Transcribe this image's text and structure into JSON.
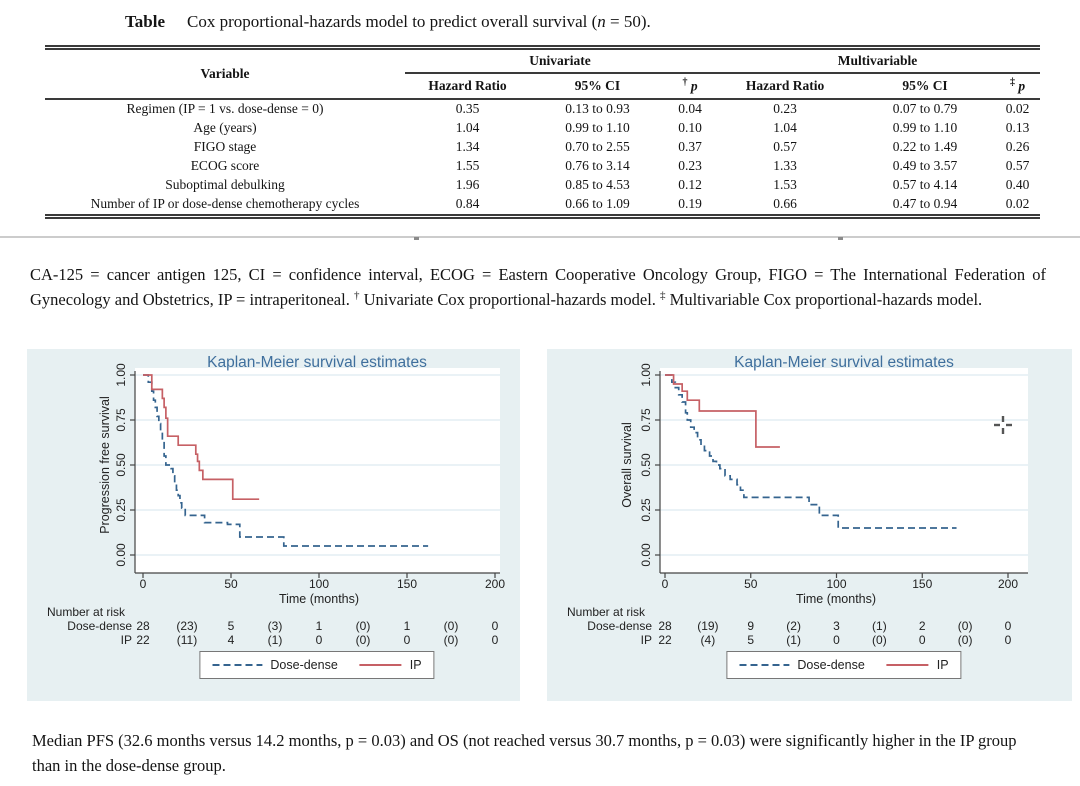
{
  "table": {
    "caption": {
      "label": "Table",
      "text1": "Cox proportional-hazards model to predict overall survival (",
      "n_italic": "n",
      "text2": " = 50)."
    },
    "col_variable": "Variable",
    "group1": "Univariate",
    "group2": "Multivariable",
    "sub_hr1": "Hazard Ratio",
    "sub_ci1": "95% CI",
    "sub_p1_sup": "†",
    "sub_p1": "p",
    "sub_hr2": "Hazard Ratio",
    "sub_ci2": "95% CI",
    "sub_p2_sup": "‡",
    "sub_p2": "p",
    "rows": [
      [
        "Regimen (IP = 1 vs. dose-dense = 0)",
        "0.35",
        "0.13 to 0.93",
        "0.04",
        "0.23",
        "0.07 to 0.79",
        "0.02"
      ],
      [
        "Age (years)",
        "1.04",
        "0.99 to 1.10",
        "0.10",
        "1.04",
        "0.99 to 1.10",
        "0.13"
      ],
      [
        "FIGO stage",
        "1.34",
        "0.70 to 2.55",
        "0.37",
        "0.57",
        "0.22 to 1.49",
        "0.26"
      ],
      [
        "ECOG score",
        "1.55",
        "0.76 to 3.14",
        "0.23",
        "1.33",
        "0.49 to 3.57",
        "0.57"
      ],
      [
        "Suboptimal debulking",
        "1.96",
        "0.85 to 4.53",
        "0.12",
        "1.53",
        "0.57 to 4.14",
        "0.40"
      ],
      [
        "Number of IP or dose-dense chemotherapy cycles",
        "0.84",
        "0.66 to 1.09",
        "0.19",
        "0.66",
        "0.47 to 0.94",
        "0.02"
      ]
    ]
  },
  "footnote": {
    "p1": "CA-125 = cancer antigen 125, CI = confidence interval, ECOG = Eastern Cooperative Oncology Group, FIGO = The International Federation of Gynecology and Obstetrics, IP = intraperitoneal. ",
    "dagger": "†",
    "p2": " Univariate Cox proportional-hazards model. ",
    "ddagger": "‡",
    "p3": " Multivariable Cox proportional-hazards model."
  },
  "colors": {
    "panel_bg": "#e7f0f2",
    "grid": "#ddebf1",
    "axis": "#444444",
    "plot_title": "#3f6f9d",
    "dose_dense": "#35648f",
    "ip": "#c66065",
    "divider": "#cccccc"
  },
  "cursor": {
    "icon": "crosshair-cursor"
  },
  "chart_data": [
    {
      "type": "line",
      "subtype": "kaplan-meier-step",
      "title": "Kaplan-Meier survival estimates",
      "xlabel": "Time (months)",
      "ylabel": "Progression free survival",
      "xlim": [
        0,
        200
      ],
      "ylim": [
        0,
        1
      ],
      "xticks": [
        0,
        50,
        100,
        150,
        200
      ],
      "yticks": [
        "0.00",
        "0.25",
        "0.50",
        "0.75",
        "1.00"
      ],
      "grid": "horizontal",
      "legend_position": "bottom",
      "series": [
        {
          "name": "Dose-dense",
          "style": "dashed",
          "color": "#35648f",
          "steps": [
            [
              0,
              1.0
            ],
            [
              3,
              0.96
            ],
            [
              5,
              0.91
            ],
            [
              6,
              0.86
            ],
            [
              7,
              0.82
            ],
            [
              8,
              0.77
            ],
            [
              9,
              0.73
            ],
            [
              10,
              0.68
            ],
            [
              11,
              0.64
            ],
            [
              12,
              0.55
            ],
            [
              13,
              0.5
            ],
            [
              16,
              0.48
            ],
            [
              17,
              0.44
            ],
            [
              18,
              0.4
            ],
            [
              19,
              0.36
            ],
            [
              20,
              0.33
            ],
            [
              21,
              0.29
            ],
            [
              22,
              0.26
            ],
            [
              24,
              0.22
            ],
            [
              35,
              0.18
            ],
            [
              48,
              0.17
            ],
            [
              55,
              0.1
            ],
            [
              80,
              0.05
            ],
            [
              162,
              0.05
            ]
          ]
        },
        {
          "name": "IP",
          "style": "solid",
          "color": "#c66065",
          "steps": [
            [
              0,
              1.0
            ],
            [
              5,
              0.92
            ],
            [
              11,
              0.87
            ],
            [
              12,
              0.82
            ],
            [
              13,
              0.76
            ],
            [
              14,
              0.66
            ],
            [
              20,
              0.61
            ],
            [
              30,
              0.56
            ],
            [
              31,
              0.52
            ],
            [
              32,
              0.47
            ],
            [
              34,
              0.42
            ],
            [
              51,
              0.31
            ],
            [
              66,
              0.31
            ]
          ]
        }
      ],
      "number_at_risk": {
        "label": "Number at risk",
        "times": [
          0,
          25,
          50,
          75,
          100,
          125,
          150,
          175,
          200
        ],
        "rows": [
          {
            "name": "Dose-dense",
            "values": [
              "28",
              "(23)",
              "5",
              "(3)",
              "1",
              "(0)",
              "1",
              "(0)",
              "0"
            ]
          },
          {
            "name": "IP",
            "values": [
              "22",
              "(11)",
              "4",
              "(1)",
              "0",
              "(0)",
              "0",
              "(0)",
              "0"
            ]
          }
        ]
      }
    },
    {
      "type": "line",
      "subtype": "kaplan-meier-step",
      "title": "Kaplan-Meier survival estimates",
      "xlabel": "Time (months)",
      "ylabel": "Overall survival",
      "xlim": [
        0,
        200
      ],
      "ylim": [
        0,
        1
      ],
      "xticks": [
        0,
        50,
        100,
        150,
        200
      ],
      "yticks": [
        "0.00",
        "0.25",
        "0.50",
        "0.75",
        "1.00"
      ],
      "grid": "horizontal",
      "legend_position": "bottom",
      "series": [
        {
          "name": "Dose-dense",
          "style": "dashed",
          "color": "#35648f",
          "steps": [
            [
              0,
              1.0
            ],
            [
              4,
              0.96
            ],
            [
              6,
              0.93
            ],
            [
              8,
              0.89
            ],
            [
              10,
              0.85
            ],
            [
              12,
              0.79
            ],
            [
              13,
              0.75
            ],
            [
              15,
              0.71
            ],
            [
              17,
              0.68
            ],
            [
              19,
              0.64
            ],
            [
              21,
              0.61
            ],
            [
              23,
              0.58
            ],
            [
              26,
              0.55
            ],
            [
              28,
              0.52
            ],
            [
              30,
              0.5
            ],
            [
              32,
              0.48
            ],
            [
              35,
              0.44
            ],
            [
              38,
              0.42
            ],
            [
              42,
              0.39
            ],
            [
              44,
              0.36
            ],
            [
              46,
              0.32
            ],
            [
              84,
              0.28
            ],
            [
              90,
              0.22
            ],
            [
              101,
              0.15
            ],
            [
              170,
              0.15
            ]
          ]
        },
        {
          "name": "IP",
          "style": "solid",
          "color": "#c66065",
          "steps": [
            [
              0,
              1.0
            ],
            [
              5,
              0.95
            ],
            [
              10,
              0.91
            ],
            [
              13,
              0.86
            ],
            [
              20,
              0.8
            ],
            [
              53,
              0.6
            ],
            [
              67,
              0.6
            ]
          ]
        }
      ],
      "number_at_risk": {
        "label": "Number at risk",
        "times": [
          0,
          25,
          50,
          75,
          100,
          125,
          150,
          175,
          200
        ],
        "rows": [
          {
            "name": "Dose-dense",
            "values": [
              "28",
              "(19)",
              "9",
              "(2)",
              "3",
              "(1)",
              "2",
              "(0)",
              "0"
            ]
          },
          {
            "name": "IP",
            "values": [
              "22",
              "(4)",
              "5",
              "(1)",
              "0",
              "(0)",
              "0",
              "(0)",
              "0"
            ]
          }
        ]
      }
    }
  ],
  "bottom_caption": "Median PFS (32.6 months versus 14.2 months, p = 0.03) and OS (not reached versus 30.7 months, p = 0.03) were significantly higher in the IP group than in the dose-dense group."
}
